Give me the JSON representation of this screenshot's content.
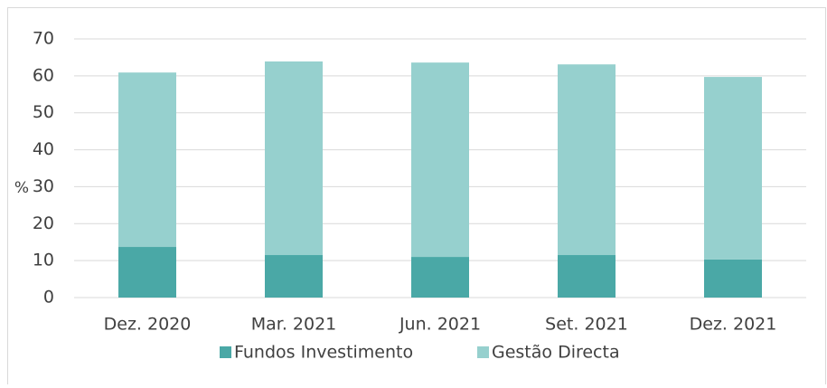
{
  "chart_data": {
    "type": "stacked_bar",
    "categories": [
      "Dez. 2020",
      "Mar. 2021",
      "Jun. 2021",
      "Set. 2021",
      "Dez. 2021"
    ],
    "series": [
      {
        "name": "Fundos Investimento",
        "color": "#4aa8a6",
        "values": [
          13.7,
          11.5,
          11.0,
          11.5,
          10.3
        ]
      },
      {
        "name": "Gestão Directa",
        "color": "#96d0ce",
        "values": [
          47.2,
          52.4,
          52.6,
          51.6,
          49.4
        ]
      }
    ],
    "y_label": "%",
    "ylim": [
      0,
      70
    ],
    "yticks": [
      0,
      10,
      20,
      30,
      40,
      50,
      60,
      70
    ],
    "grid": true
  }
}
